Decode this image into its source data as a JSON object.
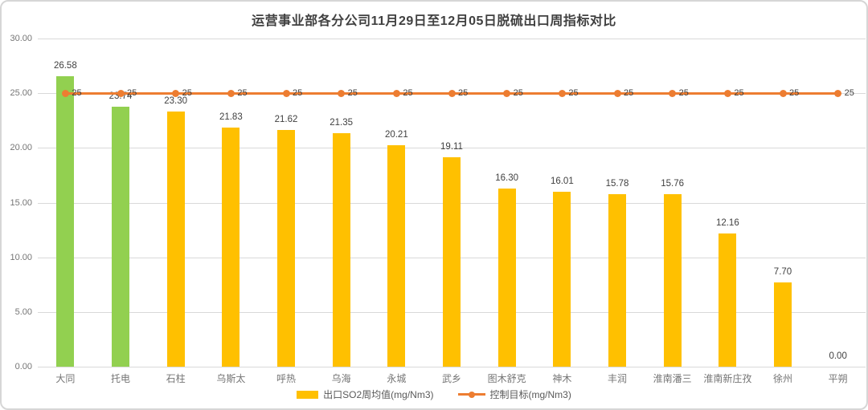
{
  "title": "运营事业部各分公司11月29日至12月05日脱硫出口周指标对比",
  "colors": {
    "bar_default": "#FFC000",
    "bar_highlight": "#92D050",
    "target_line": "#ED7D31",
    "gridline": "#D9D9D9",
    "axis_text": "#757575",
    "data_label_text": "#404040",
    "title_text": "#404040",
    "legend_text": "#595959",
    "frame_border": "#D6D6D6",
    "background": "#FFFFFF"
  },
  "legend": {
    "items": [
      {
        "label": "出口SO2周均值(mg/Nm3)",
        "type": "bar",
        "color": "#FFC000"
      },
      {
        "label": "控制目标(mg/Nm3)",
        "type": "line",
        "color": "#ED7D31"
      }
    ]
  },
  "chart_data": {
    "type": "bar",
    "title": "运营事业部各分公司11月29日至12月05日脱硫出口周指标对比",
    "xlabel": "",
    "ylabel": "",
    "ylim": [
      0,
      30
    ],
    "ytick_step": 5,
    "yticks": [
      {
        "value": 30,
        "label": "30.00"
      },
      {
        "value": 25,
        "label": "25.00"
      },
      {
        "value": 20,
        "label": "20.00"
      },
      {
        "value": 15,
        "label": "15.00"
      },
      {
        "value": 10,
        "label": "10.00"
      },
      {
        "value": 5,
        "label": "5.00"
      },
      {
        "value": 0,
        "label": "0.00"
      }
    ],
    "grid": true,
    "legend_position": "bottom",
    "categories": [
      "大同",
      "托电",
      "石柱",
      "乌斯太",
      "呼热",
      "乌海",
      "永城",
      "武乡",
      "图木舒克",
      "神木",
      "丰润",
      "淮南潘三",
      "淮南新庄孜",
      "徐州",
      "平朔"
    ],
    "series": [
      {
        "name": "出口SO2周均值(mg/Nm3)",
        "type": "bar",
        "values": [
          26.58,
          23.74,
          23.3,
          21.83,
          21.62,
          21.35,
          20.21,
          19.11,
          16.3,
          16.01,
          15.78,
          15.76,
          12.16,
          7.7,
          0.0
        ],
        "labels": [
          "26.58",
          "23.74",
          "23.30",
          "21.83",
          "21.62",
          "21.35",
          "20.21",
          "19.11",
          "16.30",
          "16.01",
          "15.78",
          "15.76",
          "12.16",
          "7.70",
          "0.00"
        ],
        "point_colors": [
          "#92D050",
          "#92D050",
          "#FFC000",
          "#FFC000",
          "#FFC000",
          "#FFC000",
          "#FFC000",
          "#FFC000",
          "#FFC000",
          "#FFC000",
          "#FFC000",
          "#FFC000",
          "#FFC000",
          "#FFC000",
          "#FFC000"
        ]
      },
      {
        "name": "控制目标(mg/Nm3)",
        "type": "line",
        "values": [
          25,
          25,
          25,
          25,
          25,
          25,
          25,
          25,
          25,
          25,
          25,
          25,
          25,
          25,
          25
        ],
        "labels": [
          "25",
          "25",
          "25",
          "25",
          "25",
          "25",
          "25",
          "25",
          "25",
          "25",
          "25",
          "25",
          "25",
          "25",
          "25"
        ],
        "color": "#ED7D31"
      }
    ]
  }
}
